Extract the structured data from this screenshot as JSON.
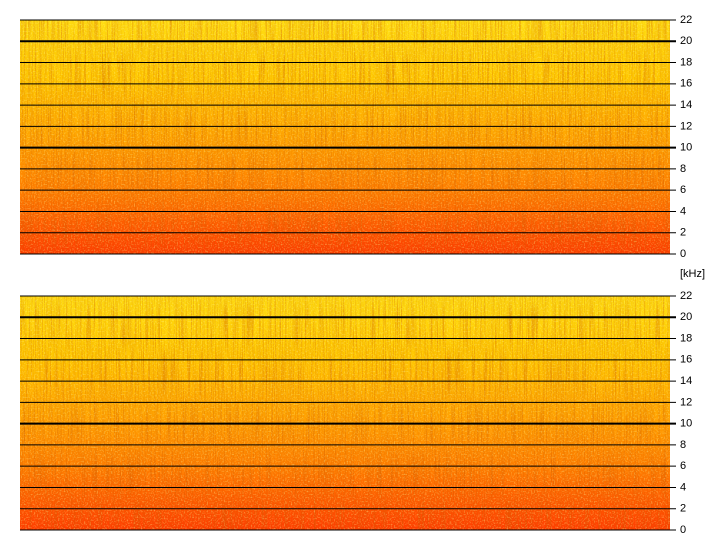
{
  "chart_data": [
    {
      "type": "spectrogram",
      "ylim": [
        0,
        22
      ],
      "yticks": [
        0,
        2,
        4,
        6,
        8,
        10,
        12,
        14,
        16,
        18,
        20,
        22
      ],
      "major_yticks": [
        10,
        20
      ],
      "colormap": [
        "#ff3c00",
        "#ff7a00",
        "#ffa400",
        "#ffc800",
        "#ffdc10"
      ],
      "grid": true
    },
    {
      "type": "spectrogram",
      "ylabel": "[kHz]",
      "ylim": [
        0,
        22
      ],
      "yticks": [
        0,
        2,
        4,
        6,
        8,
        10,
        12,
        14,
        16,
        18,
        20,
        22
      ],
      "major_yticks": [
        10,
        20
      ],
      "colormap": [
        "#ff3c00",
        "#ff7a00",
        "#ffa400",
        "#ffc800",
        "#ffdc10"
      ],
      "grid": true
    }
  ]
}
